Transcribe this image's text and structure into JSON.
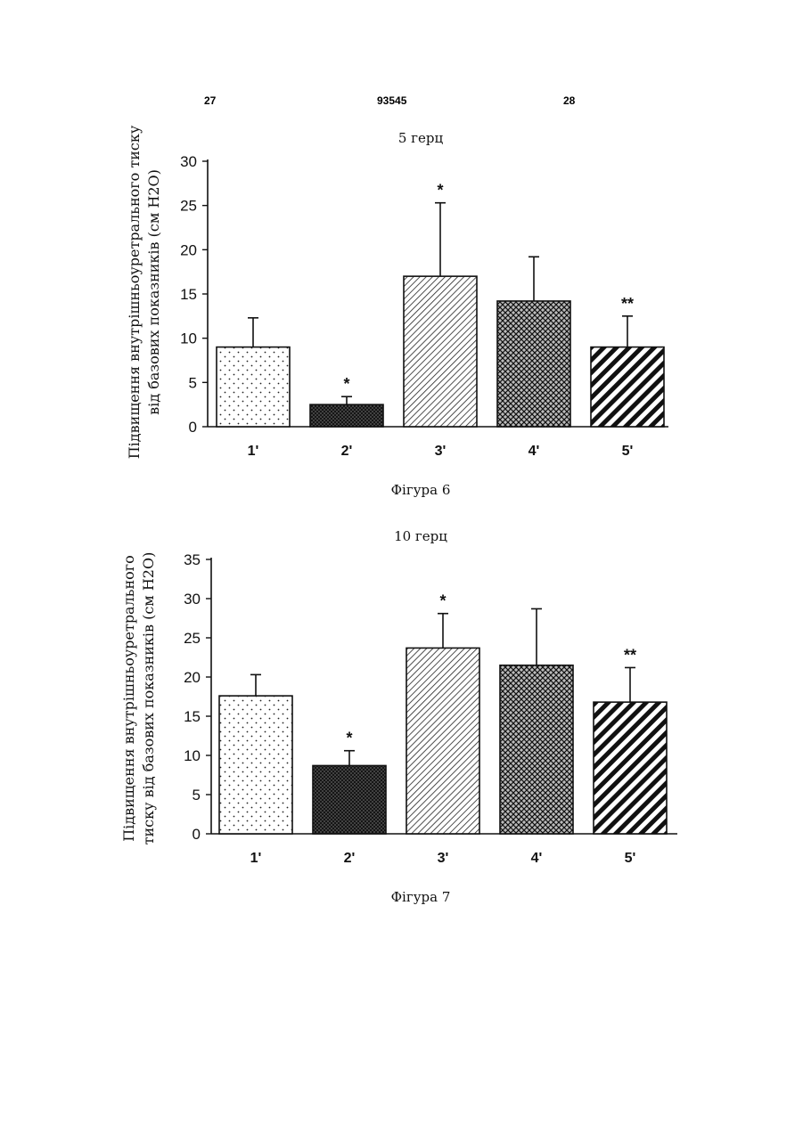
{
  "header": {
    "left": "27",
    "center": "93545",
    "right": "28"
  },
  "chart_data": [
    {
      "type": "bar",
      "title": "5 герц",
      "caption": "Фігура 6",
      "ylabel_lines": [
        "Підвищення внутрішньоуретрального тиску",
        "від базових показників (см H2O)"
      ],
      "categories": [
        "1'",
        "2'",
        "3'",
        "4'",
        "5'"
      ],
      "values": [
        9,
        2.5,
        17,
        14.2,
        9
      ],
      "errors_upper": [
        12.3,
        3.4,
        25.3,
        19.2,
        12.5
      ],
      "annotations": [
        "",
        "*",
        "*",
        "",
        "**"
      ],
      "patterns": [
        "dots",
        "crosshatch-dense",
        "diagonal-thin",
        "crosshatch",
        "diagonal-thick"
      ],
      "ylim": [
        0,
        30
      ],
      "yticks": [
        0,
        5,
        10,
        15,
        20,
        25,
        30
      ],
      "grid": false
    },
    {
      "type": "bar",
      "title": "10 герц",
      "caption": "Фігура 7",
      "ylabel_lines": [
        "Підвищення внутрішньоуретрального",
        "тиску від базових показників (см H2O)"
      ],
      "categories": [
        "1'",
        "2'",
        "3'",
        "4'",
        "5'"
      ],
      "values": [
        17.6,
        8.7,
        23.7,
        21.5,
        16.8
      ],
      "errors_upper": [
        20.3,
        10.6,
        28.1,
        28.7,
        21.2
      ],
      "annotations": [
        "",
        "*",
        "*",
        "",
        "**"
      ],
      "patterns": [
        "dots",
        "crosshatch-dense",
        "diagonal-thin",
        "crosshatch",
        "diagonal-thick"
      ],
      "ylim": [
        0,
        35
      ],
      "yticks": [
        0,
        5,
        10,
        15,
        20,
        25,
        30,
        35
      ],
      "grid": false
    }
  ]
}
